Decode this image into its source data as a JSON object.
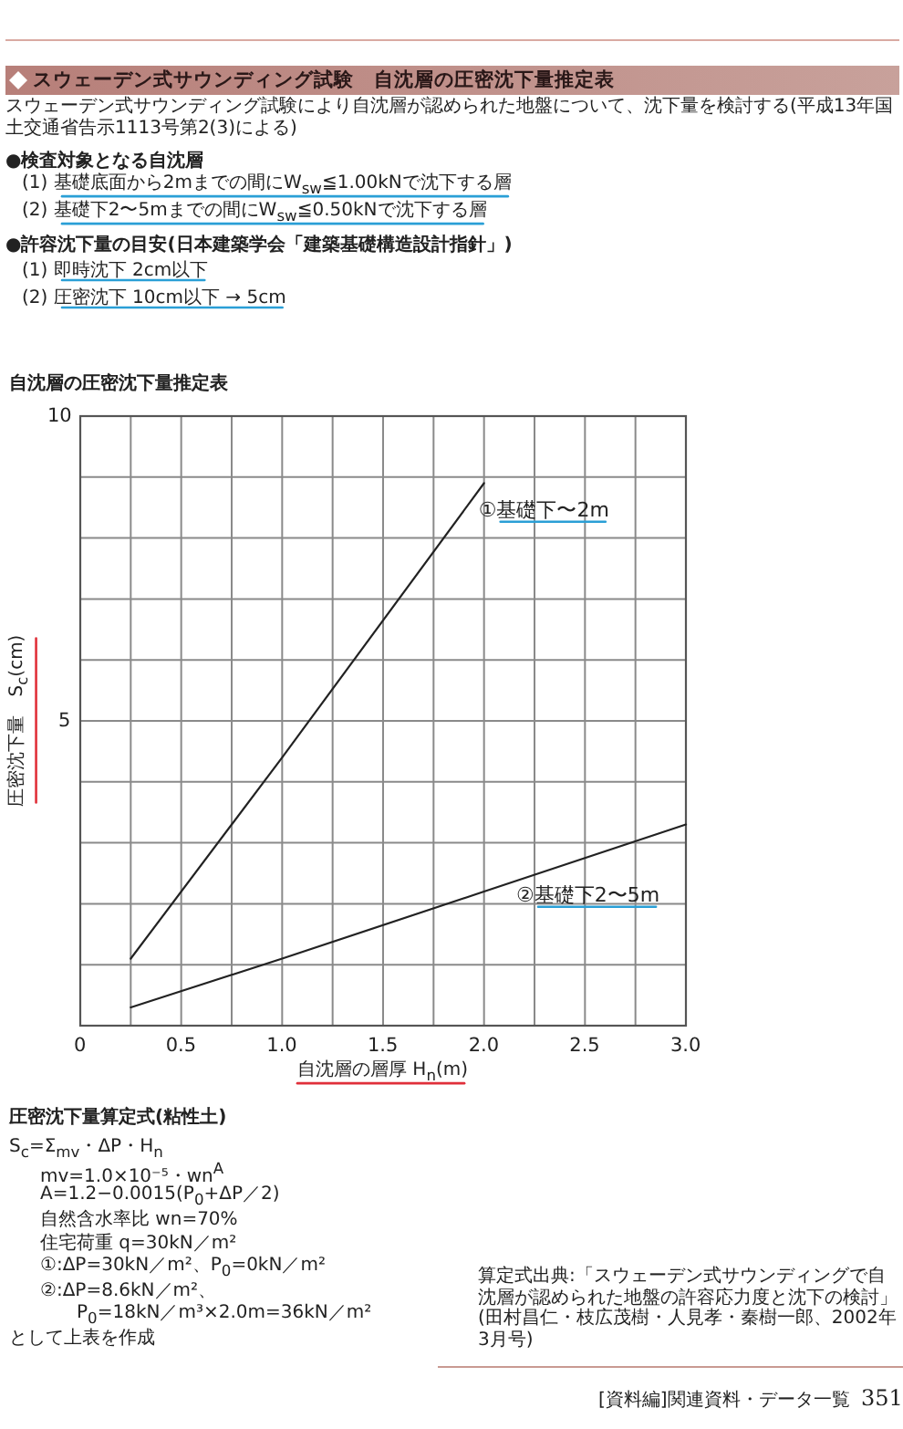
{
  "chart_data": {
    "type": "line",
    "title": "スウェーデン式サウンディング試験　自沈層の圧密沈下量推定表",
    "subtitle": "自沈層の圧密沈下量推定表",
    "xlabel": "自沈層の層厚 H$_{n}$(m)",
    "ylabel": "圧密沈下量　S$_{c}$(cm)",
    "series": [
      {
        "name": "①基礎下〜2m",
        "color": "#222222",
        "x": [
          0.25,
          1.0,
          2.0
        ],
        "values": [
          1.1,
          4.4,
          8.9
        ]
      },
      {
        "name": "②基礎下2〜5m",
        "color": "#222222",
        "x": [
          0.25,
          1.0,
          2.0,
          3.0
        ],
        "values": [
          0.3,
          1.1,
          2.2,
          3.3
        ]
      }
    ],
    "xlim": [
      0,
      3
    ],
    "ylim": [
      0,
      10
    ],
    "xticks": [
      0,
      {
        "value": 0.25,
        "label": null
      },
      0.5,
      {
        "value": 0.75,
        "label": null
      },
      {
        "value": 1,
        "label": "1.0"
      },
      {
        "value": 1.25,
        "label": null
      },
      1.5,
      {
        "value": 1.75,
        "label": null
      },
      {
        "value": 2,
        "label": "2.0"
      },
      {
        "value": 2.25,
        "label": null
      },
      2.5,
      {
        "value": 2.75,
        "label": null
      },
      {
        "value": 3,
        "label": "3.0"
      }
    ],
    "yticks": [
      {
        "value": 0,
        "label": null
      },
      {
        "value": 1,
        "label": null
      },
      {
        "value": 2,
        "label": null
      },
      {
        "value": 3,
        "label": null
      },
      {
        "value": 4,
        "label": null
      },
      5,
      {
        "value": 6,
        "label": null
      },
      {
        "value": 7,
        "label": null
      },
      {
        "value": 8,
        "label": null
      },
      {
        "value": 9,
        "label": null
      },
      10
    ],
    "grid": true,
    "legend": false,
    "marker": "none",
    "line_style": "solid",
    "annotations": [
      "スウェーデン式サウンディング試験により自沈層が認められた地盤について、沈下量を検討する(平成13年国土交通省告示1113号第2(3)による)",
      "●検査対象となる自沈層",
      "(1) 基礎底面から2mまでの間にW$_{sw}$≦1.00kNで沈下する層",
      "(2) 基礎下2〜5mまでの間にW$_{sw}$≦0.50kNで沈下する層",
      "●許容沈下量の目安(日本建築学会「建築基礎構造設計指針」)",
      "(1) 即時沈下 2cm以下",
      "(2) 圧密沈下 10cm以下 → 5cm",
      "圧密沈下量算定式(粘性土)",
      "S$_{c}$=Σ$_{mv}$・ΔP・H$_{n}$",
      "mv=1.0×10⁻⁵・wn$^{A}$",
      "A=1.2−0.0015(P$_{0}$+ΔP／2)",
      "自然含水率比 wn=70%",
      "住宅荷重 q=30kN／m²",
      "①:ΔP=30kN／m²、P$_{0}$=0kN／m²",
      "②:ΔP=8.6kN／m²、",
      "P$_{0}$=18kN／m³×2.0m=36kN／m²",
      "として上表を作成",
      "算定式出典:「スウェーデン式サウンディングで自沈層が認められた地盤の許容応力度と沈下の検討」(田村昌仁・枝広茂樹・人見孝・秦樹一郎、2002年3月号)",
      "[資料編]関連資料・データ一覧",
      "351"
    ]
  }
}
